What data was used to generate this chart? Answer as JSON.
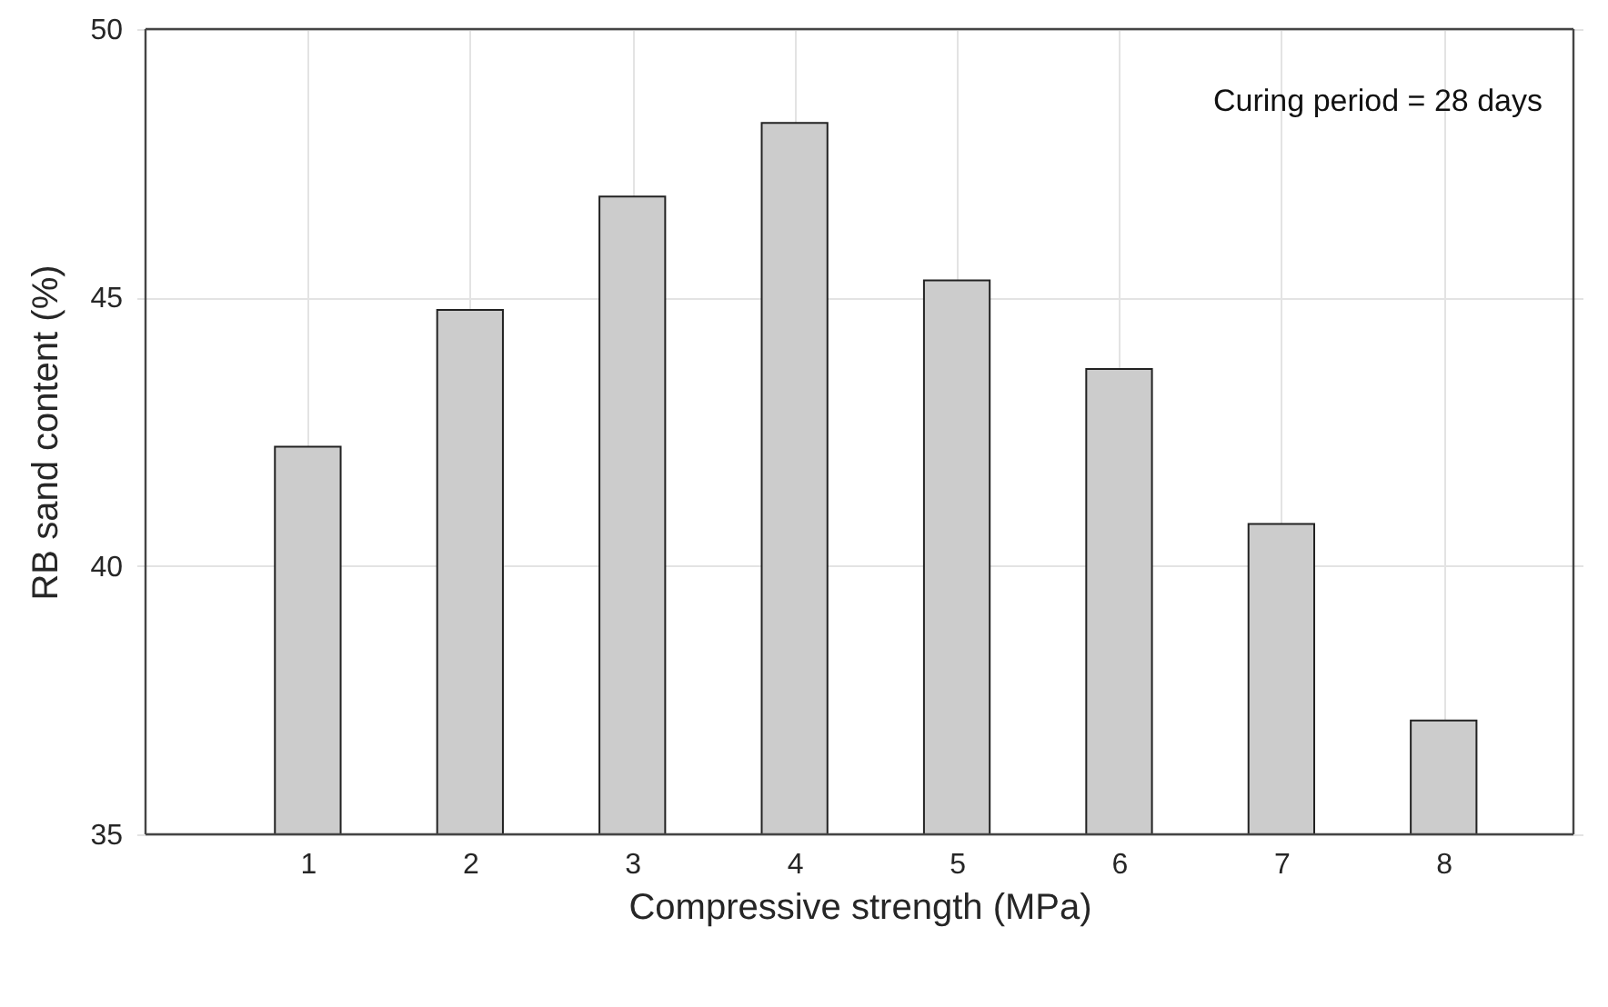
{
  "chart_data": {
    "type": "bar",
    "xlabel": "Compressive strength (MPa)",
    "ylabel": "RB sand content (%)",
    "x": [
      1,
      2,
      3,
      4,
      5,
      6,
      7,
      8
    ],
    "values": [
      42.22,
      44.77,
      46.88,
      48.25,
      45.32,
      43.67,
      40.78,
      37.12
    ],
    "color": "#cccccc",
    "xlim": [
      0,
      8.8
    ],
    "xticks": [
      1,
      2,
      3,
      4,
      5,
      6,
      7,
      8
    ],
    "ylim": [
      35,
      50
    ],
    "yticks": [
      35,
      40,
      45,
      50
    ],
    "grid": true,
    "annotations": [
      "Curing period = 28 days"
    ]
  }
}
